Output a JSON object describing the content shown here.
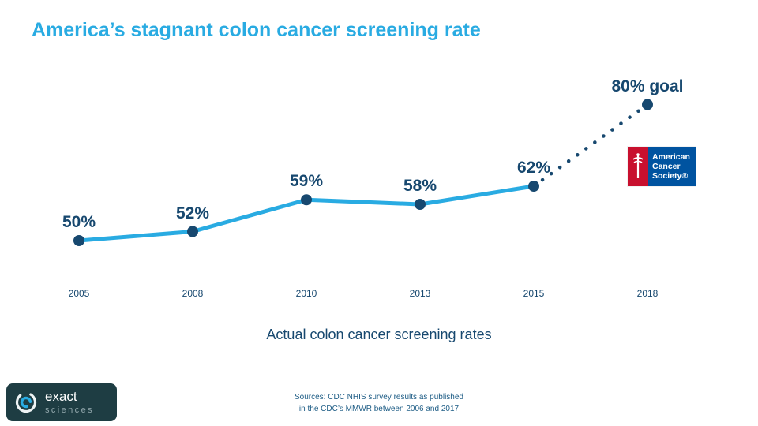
{
  "chart_data": {
    "type": "line",
    "title": "America’s stagnant colon cancer screening rate",
    "categories": [
      "2005",
      "2008",
      "2010",
      "2013",
      "2015",
      "2018"
    ],
    "values": [
      50,
      52,
      59,
      58,
      62,
      80
    ],
    "point_labels": [
      "50%",
      "52%",
      "59%",
      "58%",
      "62%",
      "80% goal"
    ],
    "segments": [
      {
        "name": "actual-rates",
        "from": 0,
        "to": 4,
        "style": "solid",
        "color": "#29abe2"
      },
      {
        "name": "goal-projection",
        "from": 4,
        "to": 5,
        "style": "dotted",
        "color": "#17486f"
      }
    ],
    "point_color": "#17486f",
    "xlabel": "Actual colon cancer screening rates",
    "ylabel": "",
    "ylim": [
      45,
      85
    ],
    "grid": false,
    "legend": "none",
    "title_color": "#29abe2",
    "label_color": "#17486f"
  },
  "acs_logo": {
    "line1": "American",
    "line2": "Cancer",
    "line3": "Society®",
    "red": "#c8102e",
    "blue": "#0053a0"
  },
  "exact_logo": {
    "name_top": "exact",
    "name_bottom": "sciences"
  },
  "sources": {
    "line1": "Sources: CDC NHIS survey results as published",
    "line2": "in the CDC’s MMWR between 2006 and 2017"
  }
}
